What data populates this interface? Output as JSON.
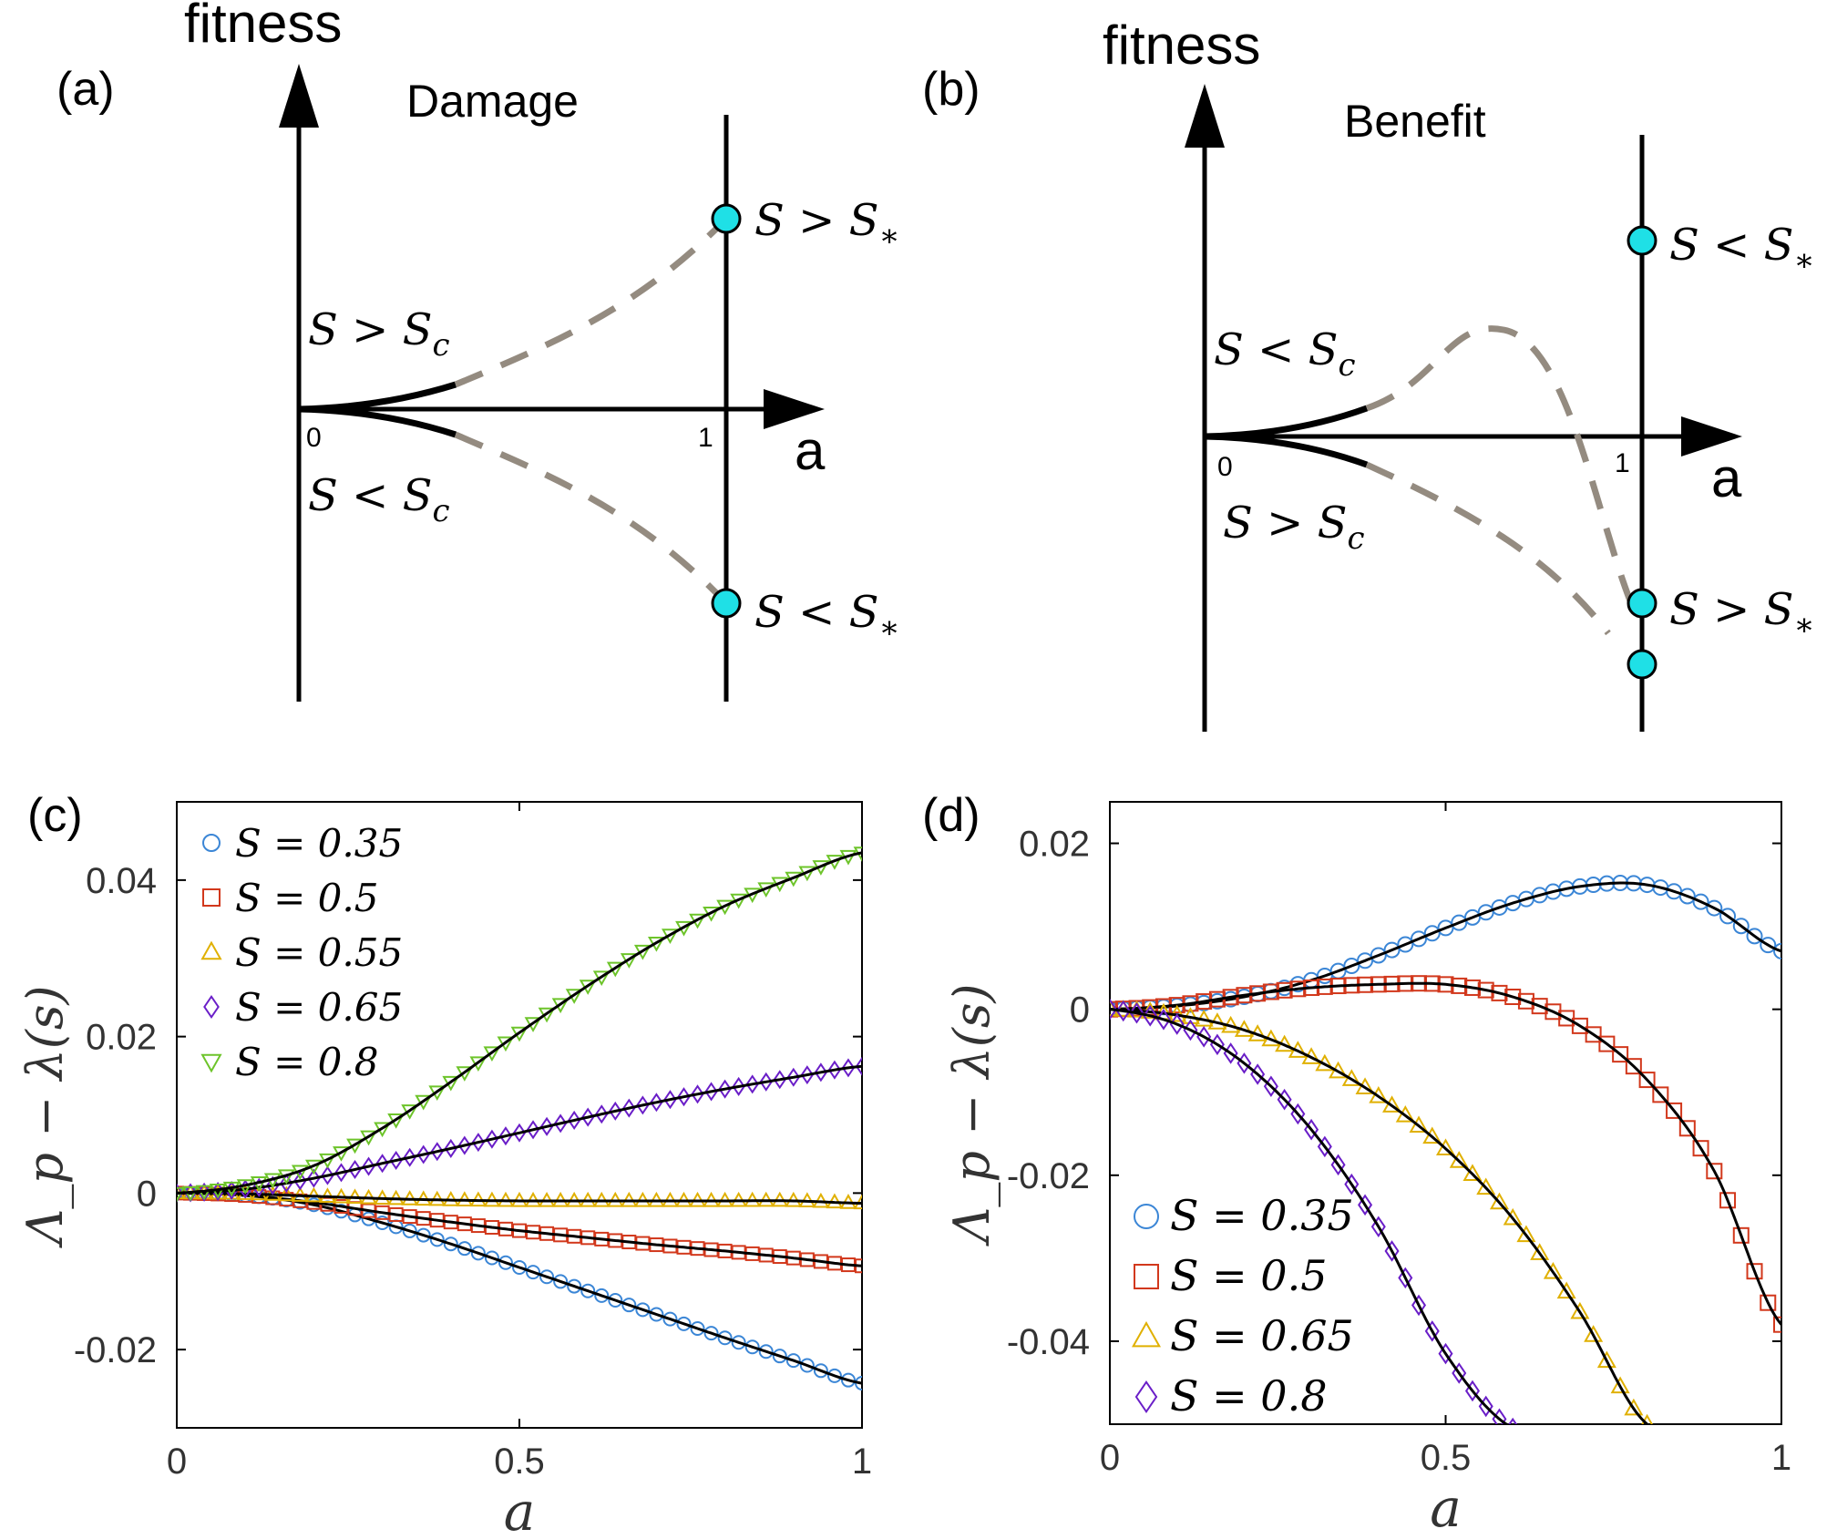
{
  "panels": {
    "a": {
      "label": "(a)",
      "title": "Damage",
      "yaxis": "fitness",
      "xaxis": "a",
      "tick0": "0",
      "tick1": "1",
      "branch_upper": "S > S_c",
      "branch_lower": "S < S_c",
      "end_upper": "S > S_*",
      "end_lower": "S < S_*"
    },
    "b": {
      "label": "(b)",
      "title": "Benefit",
      "yaxis": "fitness",
      "xaxis": "a",
      "tick0": "0",
      "tick1": "1",
      "branch_upper": "S < S_c",
      "branch_lower": "S > S_c",
      "end_upper": "S < S_*",
      "end_lower": "S > S_*"
    },
    "c": {
      "label": "(c)"
    },
    "d": {
      "label": "(d)"
    }
  },
  "colors": {
    "blue": "#3b86d6",
    "red": "#d2381c",
    "yellow": "#e0b000",
    "purple": "#6a1ec8",
    "green": "#6dc42a",
    "fit": "#000000",
    "dashed": "#948b80",
    "dot": "#1fe0e6"
  },
  "chart_data": [
    {
      "type": "scatter",
      "panel": "c",
      "xlabel": "a",
      "ylabel": "Λ_p − λ(s)",
      "xlim": [
        0,
        1
      ],
      "ylim": [
        -0.03,
        0.05
      ],
      "xticks": [
        "0",
        "0.5",
        "1"
      ],
      "yticks": [
        "-0.02",
        "0",
        "0.02",
        "0.04"
      ],
      "legend_position": "top-left",
      "x": [
        0,
        0.1,
        0.2,
        0.3,
        0.4,
        0.5,
        0.6,
        0.7,
        0.8,
        0.9,
        1.0
      ],
      "series": [
        {
          "name": "S = 0.35",
          "marker": "circle",
          "color": "blue",
          "values": [
            0,
            -0.0003,
            -0.0015,
            -0.0038,
            -0.0065,
            -0.0095,
            -0.0125,
            -0.0155,
            -0.0185,
            -0.0214,
            -0.0243
          ]
        },
        {
          "name": "S = 0.5",
          "marker": "square",
          "color": "red",
          "values": [
            0,
            -0.0003,
            -0.0012,
            -0.0025,
            -0.0037,
            -0.0048,
            -0.0057,
            -0.0066,
            -0.0074,
            -0.0083,
            -0.0093
          ]
        },
        {
          "name": "S = 0.55",
          "marker": "triangle-up",
          "color": "yellow",
          "values": [
            0,
            -0.0001,
            -0.0004,
            -0.0007,
            -0.0009,
            -0.001,
            -0.001,
            -0.001,
            -0.001,
            -0.001,
            -0.0013
          ]
        },
        {
          "name": "S = 0.65",
          "marker": "diamond",
          "color": "purple",
          "values": [
            0,
            0.0005,
            0.0019,
            0.0038,
            0.0057,
            0.0077,
            0.0097,
            0.0116,
            0.0133,
            0.0148,
            0.0162
          ]
        },
        {
          "name": "S = 0.8",
          "marker": "triangle-down",
          "color": "green",
          "values": [
            0,
            0.001,
            0.0035,
            0.0083,
            0.0142,
            0.0205,
            0.0265,
            0.032,
            0.0367,
            0.0403,
            0.0435
          ]
        }
      ]
    },
    {
      "type": "scatter",
      "panel": "d",
      "xlabel": "a",
      "ylabel": "Λ_p − λ(s)",
      "xlim": [
        0,
        1
      ],
      "ylim": [
        -0.05,
        0.025
      ],
      "xticks": [
        "0",
        "0.5",
        "1"
      ],
      "yticks": [
        "-0.04",
        "-0.02",
        "0",
        "0.02"
      ],
      "legend_position": "bottom-left",
      "x": [
        0,
        0.1,
        0.2,
        0.3,
        0.4,
        0.5,
        0.6,
        0.7,
        0.8,
        0.9,
        1.0
      ],
      "series": [
        {
          "name": "S = 0.35",
          "marker": "circle",
          "color": "blue",
          "values": [
            0,
            0.0004,
            0.0015,
            0.0035,
            0.0065,
            0.0098,
            0.0128,
            0.0148,
            0.015,
            0.0122,
            0.007
          ]
        },
        {
          "name": "S = 0.5",
          "marker": "square",
          "color": "red",
          "values": [
            0,
            0.0005,
            0.0017,
            0.0026,
            0.003,
            0.003,
            0.0015,
            -0.002,
            -0.0085,
            -0.0195,
            -0.038
          ]
        },
        {
          "name": "S = 0.65",
          "marker": "triangle-up",
          "color": "yellow",
          "values": [
            0,
            -0.0007,
            -0.0025,
            -0.0058,
            -0.0105,
            -0.0168,
            -0.0252,
            -0.0365,
            -0.05
          ]
        },
        {
          "name": "S = 0.8",
          "marker": "diamond",
          "color": "purple",
          "values": [
            0,
            -0.0018,
            -0.0065,
            -0.0145,
            -0.0262,
            -0.0415,
            -0.0505
          ]
        }
      ]
    }
  ]
}
